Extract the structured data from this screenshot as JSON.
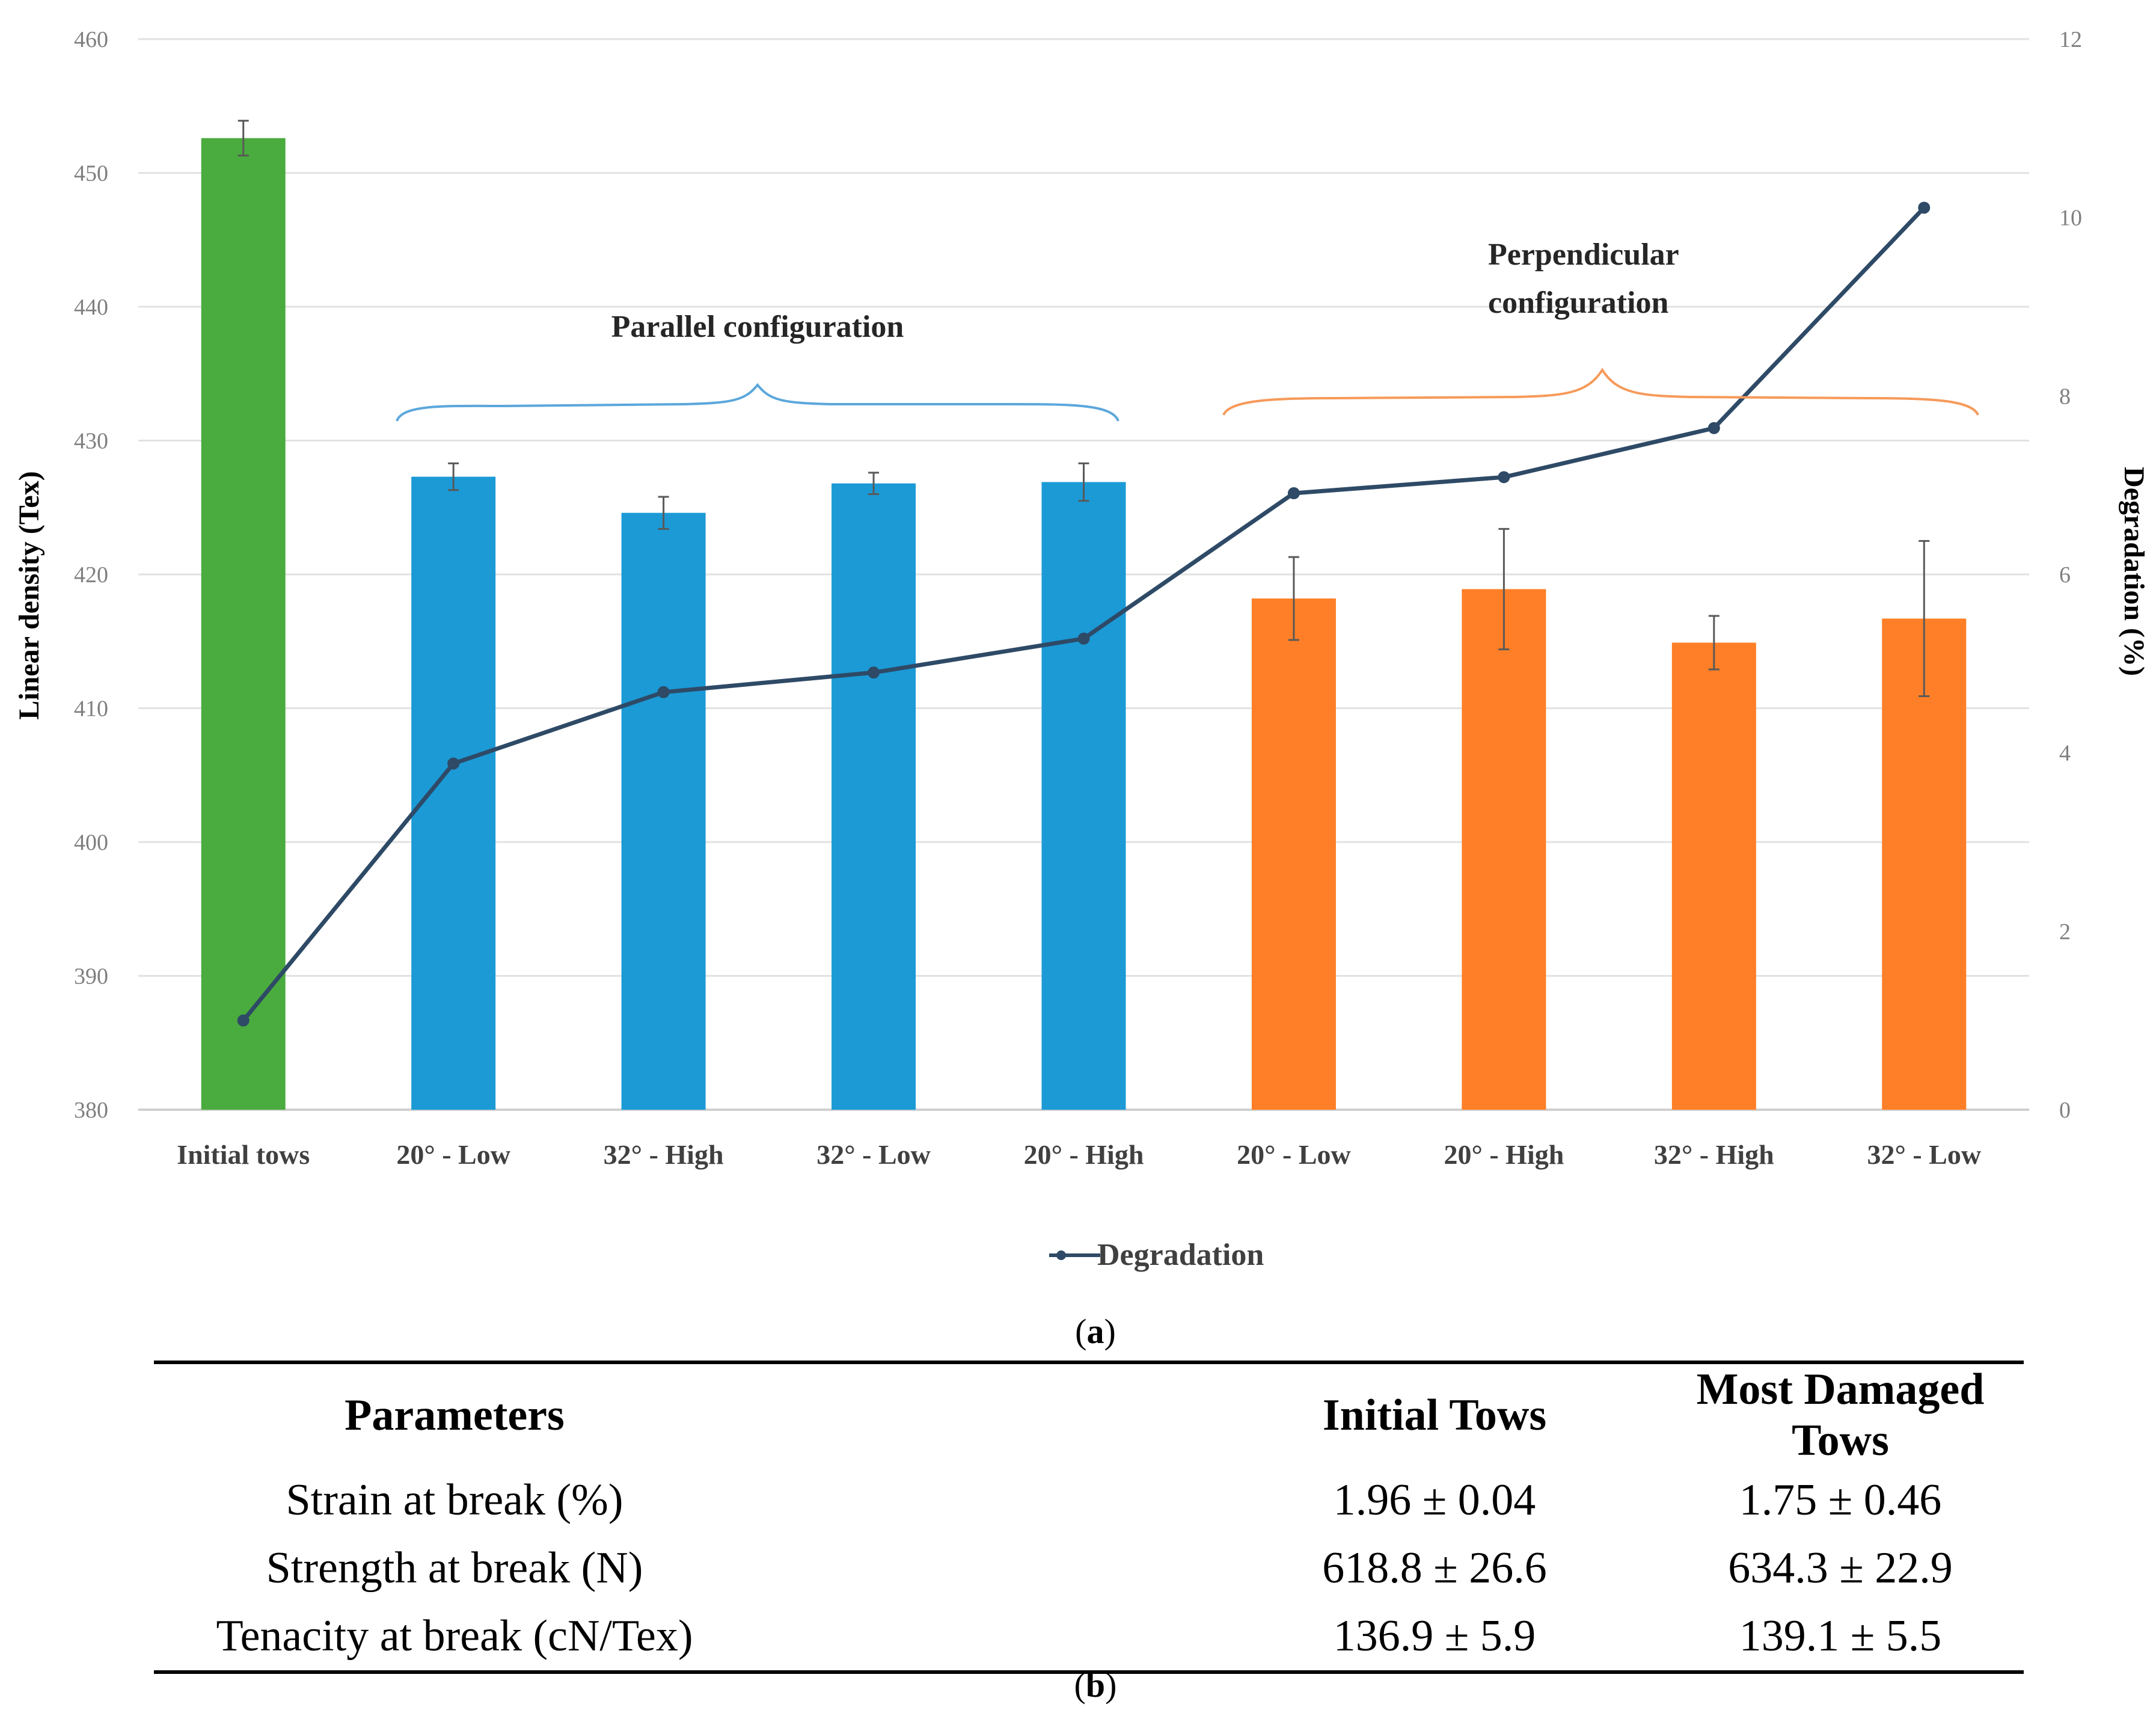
{
  "chart_data": {
    "type": "bar",
    "categories": [
      "Initial tows",
      "20° - Low",
      "32° - High",
      "32° - Low",
      "20° - High",
      "20° - Low",
      "20° - High",
      "32° - High",
      "32° - Low"
    ],
    "series": [
      {
        "name": "Linear density",
        "type": "bar",
        "axis": "left",
        "values": [
          452.6,
          427.3,
          424.6,
          426.8,
          426.9,
          418.2,
          418.9,
          414.9,
          416.7
        ],
        "errors": [
          1.3,
          1.0,
          1.2,
          0.8,
          1.4,
          3.1,
          4.5,
          2.0,
          5.8
        ],
        "colors": [
          "#4aab3e",
          "#1b9ad6",
          "#1b9ad6",
          "#1b9ad6",
          "#1b9ad6",
          "#fe7f27",
          "#fe7f27",
          "#fe7f27",
          "#fe7f27"
        ]
      },
      {
        "name": "Degradation",
        "type": "line",
        "axis": "right",
        "values": [
          1.0,
          3.88,
          4.68,
          4.9,
          5.28,
          6.91,
          7.09,
          7.64,
          10.11
        ],
        "color": "#2e4a66"
      }
    ],
    "ylabel_left": "Linear density (Tex)",
    "ylabel_right": "Degradation (%)",
    "ylim_left": [
      380,
      460
    ],
    "yticks_left": [
      "380",
      "390",
      "400",
      "410",
      "420",
      "430",
      "440",
      "450",
      "460"
    ],
    "ylim_right": [
      0,
      12
    ],
    "yticks_right": [
      "0",
      "2",
      "4",
      "6",
      "8",
      "10",
      "12"
    ],
    "grid": true,
    "legend": {
      "position": "bottom-center",
      "label": "Degradation"
    },
    "annotations": {
      "parallel": "Parallel configuration",
      "perpendicular_line1": "Perpendicular",
      "perpendicular_line2": "configuration"
    },
    "brace_colors": {
      "parallel": "#5ba7dc",
      "perpendicular": "#f69a5a"
    }
  },
  "panel_labels": {
    "a": "a",
    "b": "b"
  },
  "table": {
    "headers": [
      "Parameters",
      "Initial Tows",
      "Most Damaged Tows"
    ],
    "rows": [
      [
        "Strain at break (%)",
        "1.96 ± 0.04",
        "1.75 ± 0.46"
      ],
      [
        "Strength at break (N)",
        "618.8 ± 26.6",
        "634.3 ± 22.9"
      ],
      [
        "Tenacity at break (cN/Tex)",
        "136.9 ± 5.9",
        "139.1 ± 5.5"
      ]
    ]
  }
}
